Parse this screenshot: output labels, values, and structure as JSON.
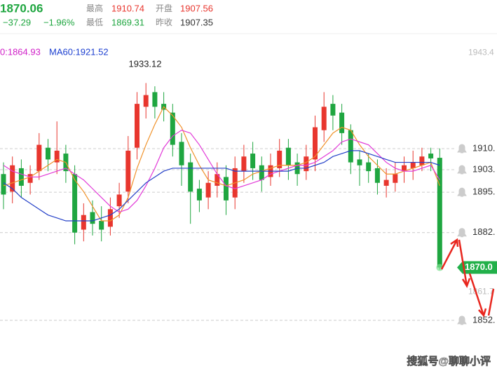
{
  "header": {
    "price": "1870.06",
    "change": "−37.29",
    "change_pct": "−1.96%",
    "high_label": "最高",
    "high": "1910.74",
    "open_label": "开盘",
    "open": "1907.56",
    "low_label": "最低",
    "low": "1869.31",
    "prev_close_label": "昨收",
    "prev_close": "1907.35"
  },
  "chart_data": {
    "type": "candlestick",
    "ma_labels": [
      {
        "text": "0:1864.93",
        "color": "#d020c8"
      },
      {
        "text": "MA60:1921.52",
        "color": "#1c3fd0"
      }
    ],
    "annotation": "1933.12",
    "watermark": "搜狐号@聊聊小评",
    "up_color": "#e8362e",
    "down_color": "#1fa640",
    "ylim": [
      1834,
      1961.5
    ],
    "yticks": [
      1943.4,
      1861.7
    ],
    "alert_lines": [
      {
        "value": 1910.7,
        "label": "1910."
      },
      {
        "value": 1903.5,
        "label": "1903."
      },
      {
        "value": 1895.8,
        "label": "1895."
      },
      {
        "value": 1882.0,
        "label": "1882."
      },
      {
        "value": 1852.0,
        "label": "1852."
      }
    ],
    "last_price": {
      "value": 1870.06,
      "label": "1870.0"
    },
    "open": [
      1902,
      1896,
      1904,
      1899,
      1903,
      1911,
      1906,
      1909,
      1902,
      1883,
      1889,
      1886,
      1884,
      1891,
      1896,
      1911,
      1925,
      1930,
      1926,
      1923,
      1913,
      1906,
      1897,
      1894,
      1898,
      1901,
      1894,
      1903,
      1909,
      1905,
      1901,
      1904,
      1911,
      1906,
      1903,
      1907,
      1917,
      1926,
      1923,
      1917,
      1907,
      1906,
      1904,
      1898,
      1899,
      1903,
      1904,
      1905,
      1909,
      1907.56
    ],
    "high": [
      1906,
      1908,
      1907,
      1905,
      1916,
      1914,
      1920,
      1912,
      1905,
      1892,
      1893,
      1891,
      1894,
      1899,
      1915,
      1930,
      1933.12,
      1932,
      1930,
      1926,
      1916,
      1909,
      1900,
      1903,
      1906,
      1905,
      1908,
      1912,
      1913,
      1908,
      1909,
      1914,
      1914,
      1909,
      1912,
      1922,
      1930,
      1929,
      1926,
      1919,
      1910,
      1909,
      1907,
      1904,
      1906,
      1908,
      1910,
      1911,
      1911,
      1910.74
    ],
    "low": [
      1890,
      1892,
      1894,
      1895,
      1900,
      1903,
      1902,
      1899,
      1878,
      1879,
      1881,
      1879,
      1881,
      1887,
      1892,
      1907,
      1921,
      1921,
      1920,
      1908,
      1898,
      1885,
      1889,
      1890,
      1894,
      1888,
      1890,
      1899,
      1900,
      1896,
      1898,
      1901,
      1900,
      1898,
      1900,
      1903,
      1913,
      1917,
      1912,
      1902,
      1898,
      1899,
      1895,
      1894,
      1896,
      1899,
      1900,
      1903,
      1903,
      1869.31
    ],
    "close": [
      1895,
      1905,
      1898,
      1902,
      1912,
      1907,
      1910,
      1903,
      1882,
      1888,
      1885,
      1883,
      1890,
      1895,
      1910,
      1926,
      1929,
      1925,
      1924,
      1912,
      1905,
      1896,
      1893,
      1899,
      1902,
      1893,
      1904,
      1908,
      1904,
      1900,
      1905,
      1910,
      1905,
      1902,
      1908,
      1918,
      1925,
      1922,
      1916,
      1906,
      1905,
      1903,
      1899,
      1900,
      1902,
      1905,
      1906,
      1908,
      1907.35,
      1870.06
    ],
    "ma": [
      {
        "color": "#f0922a",
        "values": [
          1898,
          1899,
          1900,
          1901,
          1903,
          1905,
          1907,
          1906,
          1900,
          1896,
          1891,
          1886,
          1886,
          1888,
          1894,
          1904,
          1912,
          1919,
          1925,
          1922,
          1918,
          1911,
          1905,
          1900,
          1899,
          1898,
          1899,
          1900,
          1902,
          1903,
          1904,
          1905,
          1905,
          1905,
          1906,
          1908,
          1912,
          1916,
          1918,
          1917,
          1912,
          1908,
          1905,
          1902,
          1902,
          1903,
          1904,
          1905,
          1906,
          1898
        ]
      },
      {
        "color": "#e23ad8",
        "values": [
          1905,
          1903,
          1902,
          1901,
          1901,
          1902,
          1903,
          1904,
          1902,
          1900,
          1897,
          1894,
          1891,
          1889,
          1890,
          1893,
          1898,
          1904,
          1911,
          1915,
          1917,
          1916,
          1912,
          1907,
          1902,
          1898,
          1897,
          1898,
          1899,
          1900,
          1902,
          1903,
          1904,
          1905,
          1905,
          1906,
          1908,
          1910,
          1913,
          1914,
          1913,
          1912,
          1909,
          1906,
          1904,
          1903,
          1903,
          1904,
          1905,
          1900
        ]
      },
      {
        "color": "#2440c8",
        "values": [
          1899,
          1897,
          1894,
          1892,
          1890,
          1888,
          1887,
          1886,
          1886,
          1886,
          1886,
          1887,
          1888,
          1890,
          1893,
          1896,
          1899,
          1901,
          1903,
          1904,
          1904,
          1904,
          1904,
          1904,
          1904,
          1904,
          1903,
          1903,
          1903,
          1903,
          1903,
          1903,
          1903,
          1904,
          1904,
          1905,
          1906,
          1908,
          1909,
          1910,
          1910,
          1909,
          1908,
          1907,
          1906,
          1906,
          1906,
          1906,
          1906,
          1905
        ]
      }
    ]
  }
}
